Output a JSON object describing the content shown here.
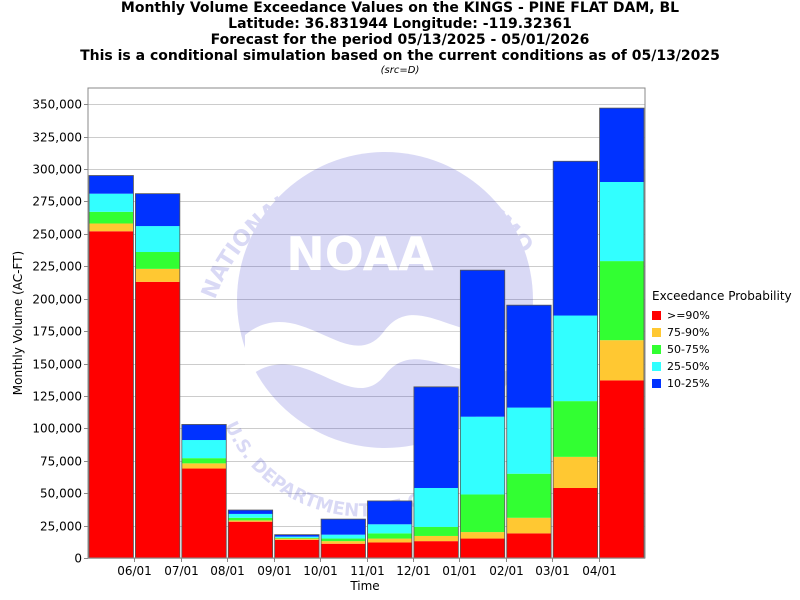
{
  "titles": {
    "line1": "Monthly Volume Exceedance Values on the KINGS - PINE FLAT DAM, BL",
    "line2": "Latitude: 36.831944 Longitude: -119.32361",
    "line3": "Forecast for the period 05/13/2025 - 05/01/2026",
    "line4": "This is a conditional simulation based on the current conditions as of 05/13/2025",
    "source": "(src=D)"
  },
  "watermark": {
    "logo_text": "NOAA",
    "ring_text": "NATIONAL OCEANIC AND ATMOSPHERIC ADMINISTRATION",
    "lower_text": "U.S. DEPARTMENT OF COMMERCE"
  },
  "legend": {
    "title": "Exceedance Probability",
    "items": [
      {
        "label": ">=90%",
        "color": "#ff0000"
      },
      {
        "label": "75-90%",
        "color": "#ffc832"
      },
      {
        "label": "50-75%",
        "color": "#32ff32"
      },
      {
        "label": "25-50%",
        "color": "#32ffff"
      },
      {
        "label": "10-25%",
        "color": "#0032ff"
      }
    ]
  },
  "chart_data": {
    "type": "bar",
    "stacked": true,
    "xlabel": "Time",
    "ylabel": "Monthly Volume (AC-FT)",
    "ylim": [
      0,
      362500
    ],
    "yticks": [
      0,
      25000,
      50000,
      75000,
      100000,
      125000,
      150000,
      175000,
      200000,
      225000,
      250000,
      275000,
      300000,
      325000,
      350000
    ],
    "ytick_labels": [
      "0",
      "25,000",
      "50,000",
      "75,000",
      "100,000",
      "125,000",
      "150,000",
      "175,000",
      "200,000",
      "225,000",
      "250,000",
      "275,000",
      "300,000",
      "325,000",
      "350,000"
    ],
    "xtick_labels": [
      "06/01",
      "07/01",
      "08/01",
      "09/01",
      "10/01",
      "11/01",
      "12/01",
      "01/01",
      "02/01",
      "03/01",
      "04/01"
    ],
    "grid": true,
    "legend_position": "right",
    "bars": [
      {
        "period": "05/2025",
        "values": [
          252000,
          258000,
          267000,
          281000,
          295000
        ]
      },
      {
        "period": "06/2025",
        "values": [
          213000,
          223000,
          236000,
          256000,
          281000
        ]
      },
      {
        "period": "07/2025",
        "values": [
          69000,
          73000,
          77000,
          91000,
          103000
        ]
      },
      {
        "period": "08/2025",
        "values": [
          28000,
          29000,
          31000,
          34000,
          37000
        ]
      },
      {
        "period": "09/2025",
        "values": [
          14000,
          15000,
          15500,
          16500,
          18000
        ]
      },
      {
        "period": "10/2025",
        "values": [
          11000,
          13000,
          15000,
          18000,
          30000
        ]
      },
      {
        "period": "11/2025",
        "values": [
          12000,
          15000,
          19000,
          26000,
          44000
        ]
      },
      {
        "period": "12/2025",
        "values": [
          13000,
          17000,
          24000,
          54000,
          132000
        ]
      },
      {
        "period": "01/2026",
        "values": [
          15000,
          20000,
          49000,
          109000,
          222000
        ]
      },
      {
        "period": "02/2026",
        "values": [
          19000,
          31000,
          65000,
          116000,
          195000
        ]
      },
      {
        "period": "03/2026",
        "values": [
          54000,
          78000,
          121000,
          187000,
          306000
        ]
      },
      {
        "period": "04/2026",
        "values": [
          137000,
          168000,
          229000,
          290000,
          347000
        ]
      }
    ],
    "values_are": "cumulative stacked tops per exceedance band, lowest band first"
  }
}
